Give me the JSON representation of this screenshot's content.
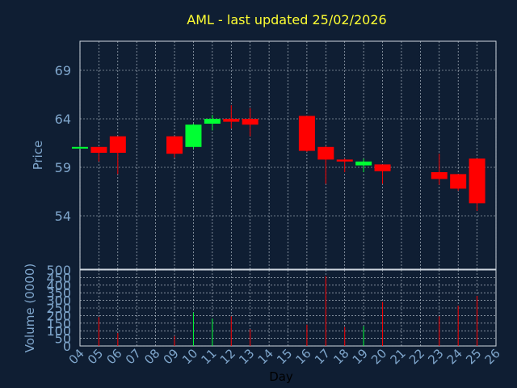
{
  "chart_data": {
    "type": "candlestick",
    "title": "AML - last updated 25/02/2026",
    "xlabel": "Day",
    "x_ticks": [
      "04",
      "05",
      "06",
      "07",
      "08",
      "09",
      "10",
      "11",
      "12",
      "13",
      "14",
      "15",
      "16",
      "17",
      "18",
      "19",
      "20",
      "21",
      "22",
      "23",
      "24",
      "25",
      "26"
    ],
    "price_panel": {
      "ylabel": "Price",
      "ylim": [
        48.5,
        72
      ],
      "y_ticks": [
        54,
        59,
        64,
        69
      ],
      "grid": true,
      "candles": [
        {
          "day": 4,
          "open": 61.0,
          "high": 61.2,
          "low": 60.9,
          "close": 61.1
        },
        {
          "day": 5,
          "open": 61.1,
          "high": 61.1,
          "low": 59.6,
          "close": 60.5
        },
        {
          "day": 6,
          "open": 62.2,
          "high": 62.2,
          "low": 58.3,
          "close": 60.5
        },
        {
          "day": 9,
          "open": 62.2,
          "high": 62.2,
          "low": 60.0,
          "close": 60.4
        },
        {
          "day": 10,
          "open": 61.1,
          "high": 63.5,
          "low": 60.9,
          "close": 63.4
        },
        {
          "day": 11,
          "open": 63.5,
          "high": 64.4,
          "low": 62.8,
          "close": 64.0
        },
        {
          "day": 12,
          "open": 64.0,
          "high": 65.4,
          "low": 63.0,
          "close": 63.7
        },
        {
          "day": 13,
          "open": 64.0,
          "high": 65.1,
          "low": 62.2,
          "close": 63.4
        },
        {
          "day": 16,
          "open": 64.3,
          "high": 64.3,
          "low": 60.6,
          "close": 60.7
        },
        {
          "day": 17,
          "open": 61.1,
          "high": 61.2,
          "low": 57.3,
          "close": 59.8
        },
        {
          "day": 18,
          "open": 59.8,
          "high": 59.9,
          "low": 58.5,
          "close": 59.6
        },
        {
          "day": 19,
          "open": 59.2,
          "high": 59.9,
          "low": 58.5,
          "close": 59.6
        },
        {
          "day": 20,
          "open": 59.3,
          "high": 59.3,
          "low": 57.3,
          "close": 58.6
        },
        {
          "day": 23,
          "open": 58.5,
          "high": 60.4,
          "low": 57.2,
          "close": 57.8
        },
        {
          "day": 24,
          "open": 58.3,
          "high": 58.3,
          "low": 56.6,
          "close": 56.8
        },
        {
          "day": 25,
          "open": 59.9,
          "high": 59.9,
          "low": 54.5,
          "close": 55.3
        }
      ]
    },
    "volume_panel": {
      "ylabel": "Volume (0000)",
      "ylim": [
        0,
        500
      ],
      "y_ticks": [
        0,
        50,
        100,
        150,
        200,
        250,
        300,
        350,
        400,
        450,
        500
      ],
      "grid": true,
      "bars": [
        {
          "day": 5,
          "volume": 190
        },
        {
          "day": 6,
          "volume": 85
        },
        {
          "day": 9,
          "volume": 65
        },
        {
          "day": 10,
          "volume": 220
        },
        {
          "day": 11,
          "volume": 180
        },
        {
          "day": 12,
          "volume": 195
        },
        {
          "day": 13,
          "volume": 110
        },
        {
          "day": 16,
          "volume": 140
        },
        {
          "day": 17,
          "volume": 460
        },
        {
          "day": 18,
          "volume": 125
        },
        {
          "day": 19,
          "volume": 130
        },
        {
          "day": 20,
          "volume": 290
        },
        {
          "day": 23,
          "volume": 195
        },
        {
          "day": 24,
          "volume": 265
        },
        {
          "day": 25,
          "volume": 330
        }
      ]
    },
    "colors": {
      "background": "#0f1e33",
      "up": "#00ff33",
      "down": "#ff0000",
      "grid": "#c8d2dc",
      "frame": "#d0d8e0",
      "tick_text": "#7fa6cc",
      "title": "#ffff33"
    }
  }
}
